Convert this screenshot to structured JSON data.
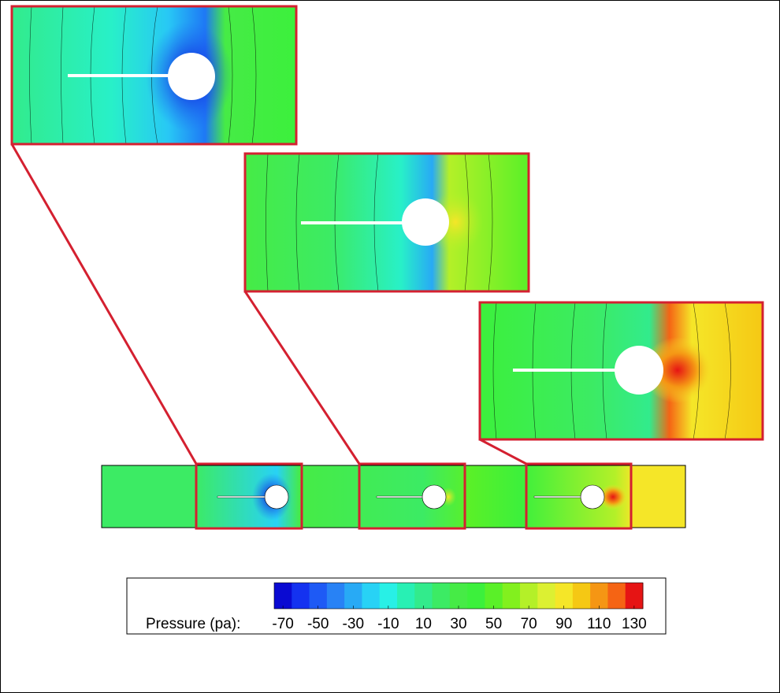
{
  "chart_data": {
    "type": "contour",
    "colorbar": {
      "label": "Pressure (pa):",
      "clim": [
        -75,
        135
      ],
      "ticks": [
        -70,
        -50,
        -30,
        -10,
        10,
        30,
        50,
        70,
        90,
        110,
        130
      ],
      "colors": [
        "#0a0ad2",
        "#1432f0",
        "#1e5af5",
        "#2882f5",
        "#28aaf5",
        "#28d2f5",
        "#28f0e6",
        "#28f0b4",
        "#32eb8c",
        "#3ceb64",
        "#46eb46",
        "#3cf03c",
        "#5af028",
        "#82f01e",
        "#b4f028",
        "#dcf032",
        "#f5e628",
        "#f5c814",
        "#f59614",
        "#f56414",
        "#e61414"
      ]
    }
  }
}
